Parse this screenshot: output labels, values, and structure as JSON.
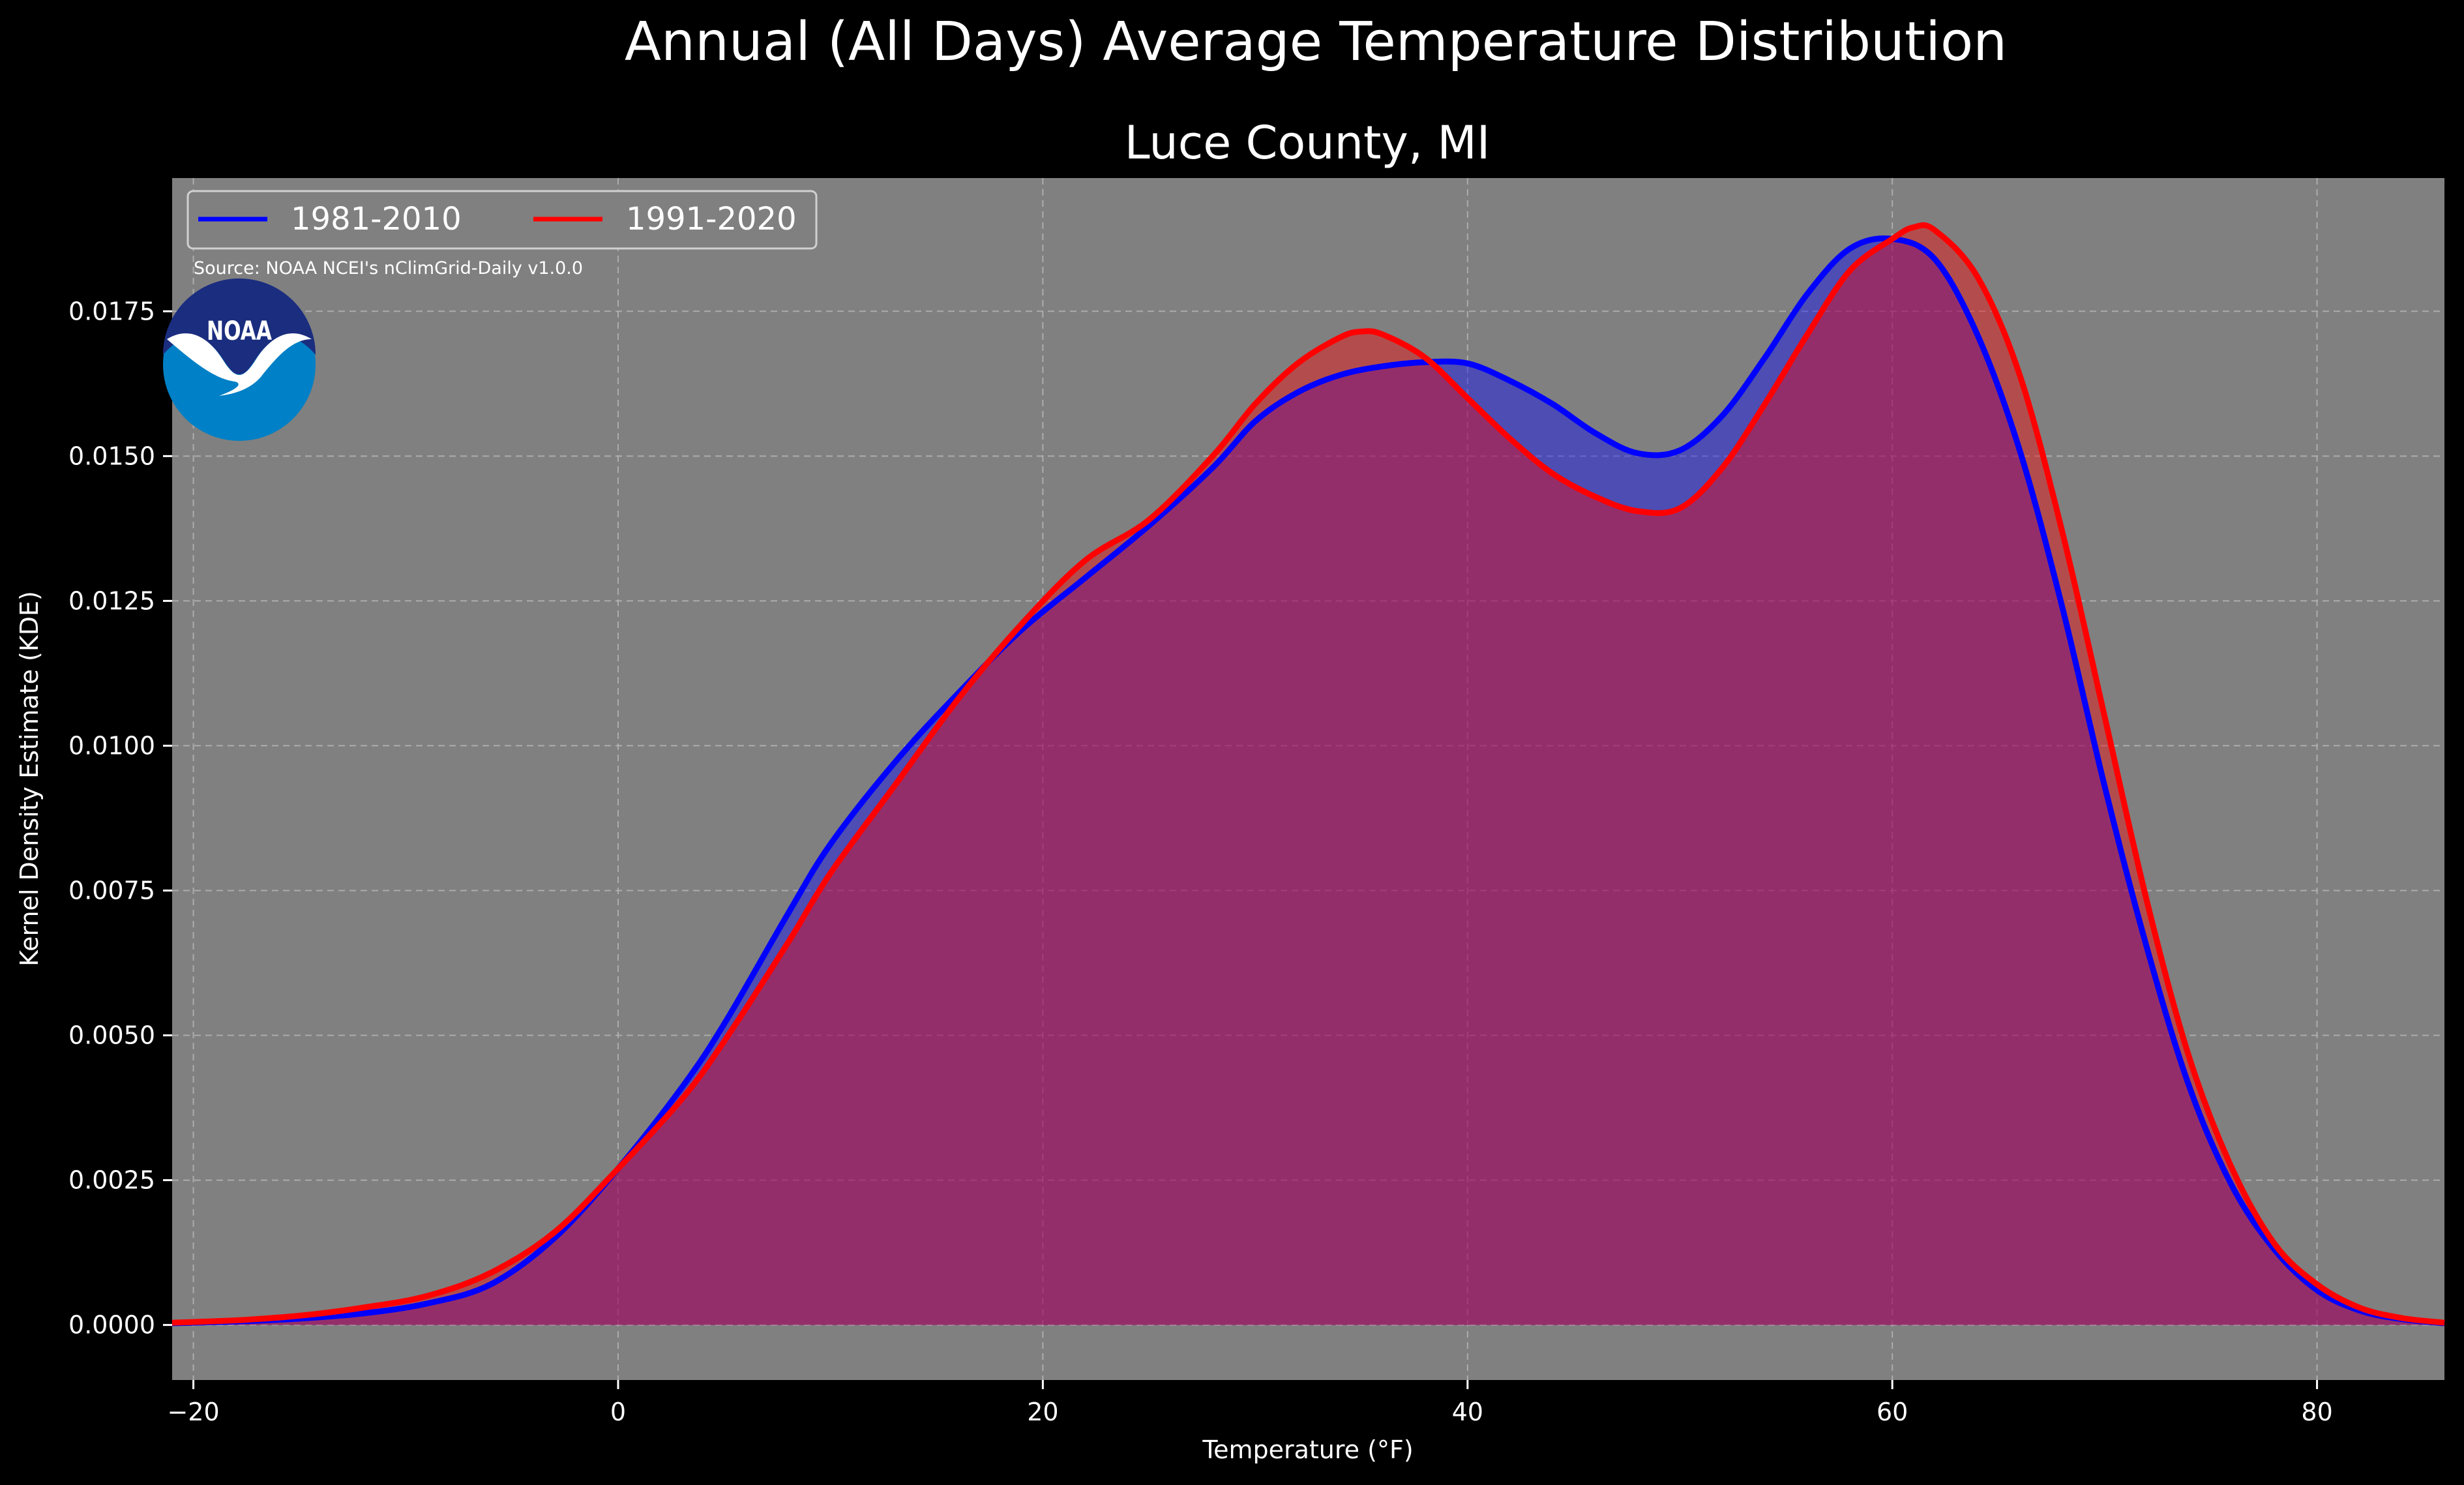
{
  "figure": {
    "suptitle": "Annual (All Days) Average Temperature Distribution",
    "source": "Source: NOAA NCEI's nClimGrid-Daily v1.0.0",
    "logo_text": "NOAA",
    "background_color": "#000000",
    "plot_background_color": "#808080"
  },
  "chart_data": {
    "type": "area",
    "title": "Luce County, MI",
    "xlabel": "Temperature (°F)",
    "ylabel": "Kernel Density Estimate (KDE)",
    "xlim": [
      -21,
      86
    ],
    "ylim": [
      -0.00095,
      0.0198
    ],
    "xticks": [
      -20,
      0,
      20,
      40,
      60,
      80
    ],
    "xtick_labels": [
      "−20",
      "0",
      "20",
      "40",
      "60",
      "80"
    ],
    "yticks": [
      0.0,
      0.0025,
      0.005,
      0.0075,
      0.01,
      0.0125,
      0.015,
      0.0175
    ],
    "ytick_labels": [
      "0.0000",
      "0.0025",
      "0.0050",
      "0.0075",
      "0.0100",
      "0.0125",
      "0.0150",
      "0.0175"
    ],
    "grid": true,
    "legend": {
      "placement": "top-left",
      "columns": 2
    },
    "series": [
      {
        "name": "1981-2010",
        "color": "#0000ff",
        "fill_opacity": 0.4,
        "points": [
          [
            -21,
            3e-05
          ],
          [
            -18,
            6e-05
          ],
          [
            -15,
            0.00011
          ],
          [
            -12,
            0.0002
          ],
          [
            -9,
            0.00037
          ],
          [
            -6,
            0.0007
          ],
          [
            -3,
            0.0015
          ],
          [
            0,
            0.0027
          ],
          [
            3,
            0.0041
          ],
          [
            5,
            0.0052
          ],
          [
            8,
            0.0071
          ],
          [
            10,
            0.0083
          ],
          [
            13,
            0.0097
          ],
          [
            16,
            0.0109
          ],
          [
            19,
            0.012
          ],
          [
            22,
            0.0129
          ],
          [
            25,
            0.0138
          ],
          [
            28,
            0.0148
          ],
          [
            30,
            0.0156
          ],
          [
            32,
            0.0161
          ],
          [
            34,
            0.0164
          ],
          [
            36,
            0.01655
          ],
          [
            38,
            0.01662
          ],
          [
            40,
            0.0166
          ],
          [
            42,
            0.0163
          ],
          [
            44,
            0.0159
          ],
          [
            46,
            0.0154
          ],
          [
            48,
            0.01505
          ],
          [
            50,
            0.0151
          ],
          [
            52,
            0.0157
          ],
          [
            54,
            0.0167
          ],
          [
            56,
            0.0178
          ],
          [
            58,
            0.01858
          ],
          [
            60,
            0.01875
          ],
          [
            62,
            0.0184
          ],
          [
            64,
            0.0171
          ],
          [
            66,
            0.0151
          ],
          [
            68,
            0.0124
          ],
          [
            70,
            0.0093
          ],
          [
            72,
            0.0065
          ],
          [
            74,
            0.0041
          ],
          [
            76,
            0.0024
          ],
          [
            78,
            0.0013
          ],
          [
            80,
            0.0006
          ],
          [
            82,
            0.00025
          ],
          [
            84,
            0.0001
          ],
          [
            86,
            3e-05
          ]
        ]
      },
      {
        "name": "1991-2020",
        "color": "#ff0000",
        "fill_opacity": 0.4,
        "points": [
          [
            -21,
            4e-05
          ],
          [
            -18,
            8e-05
          ],
          [
            -15,
            0.00016
          ],
          [
            -12,
            0.0003
          ],
          [
            -9,
            0.0005
          ],
          [
            -6,
            0.0009
          ],
          [
            -3,
            0.0016
          ],
          [
            0,
            0.0027
          ],
          [
            3,
            0.0039
          ],
          [
            5,
            0.0049
          ],
          [
            8,
            0.0066
          ],
          [
            10,
            0.0078
          ],
          [
            13,
            0.0093
          ],
          [
            16,
            0.0108
          ],
          [
            19,
            0.0121
          ],
          [
            22,
            0.0132
          ],
          [
            25,
            0.0139
          ],
          [
            28,
            0.015
          ],
          [
            30,
            0.0159
          ],
          [
            32,
            0.0166
          ],
          [
            34,
            0.01705
          ],
          [
            35,
            0.01715
          ],
          [
            36,
            0.0171
          ],
          [
            38,
            0.0167
          ],
          [
            40,
            0.016
          ],
          [
            42,
            0.0153
          ],
          [
            44,
            0.0147
          ],
          [
            46,
            0.0143
          ],
          [
            48,
            0.01405
          ],
          [
            50,
            0.0141
          ],
          [
            52,
            0.0148
          ],
          [
            54,
            0.0159
          ],
          [
            56,
            0.0171
          ],
          [
            58,
            0.0182
          ],
          [
            60,
            0.01875
          ],
          [
            61,
            0.01895
          ],
          [
            62,
            0.0189
          ],
          [
            64,
            0.0181
          ],
          [
            66,
            0.0164
          ],
          [
            68,
            0.0137
          ],
          [
            70,
            0.0105
          ],
          [
            72,
            0.0073
          ],
          [
            74,
            0.0046
          ],
          [
            76,
            0.0027
          ],
          [
            78,
            0.0014
          ],
          [
            80,
            0.0007
          ],
          [
            82,
            0.0003
          ],
          [
            84,
            0.00012
          ],
          [
            86,
            4e-05
          ]
        ]
      }
    ]
  }
}
